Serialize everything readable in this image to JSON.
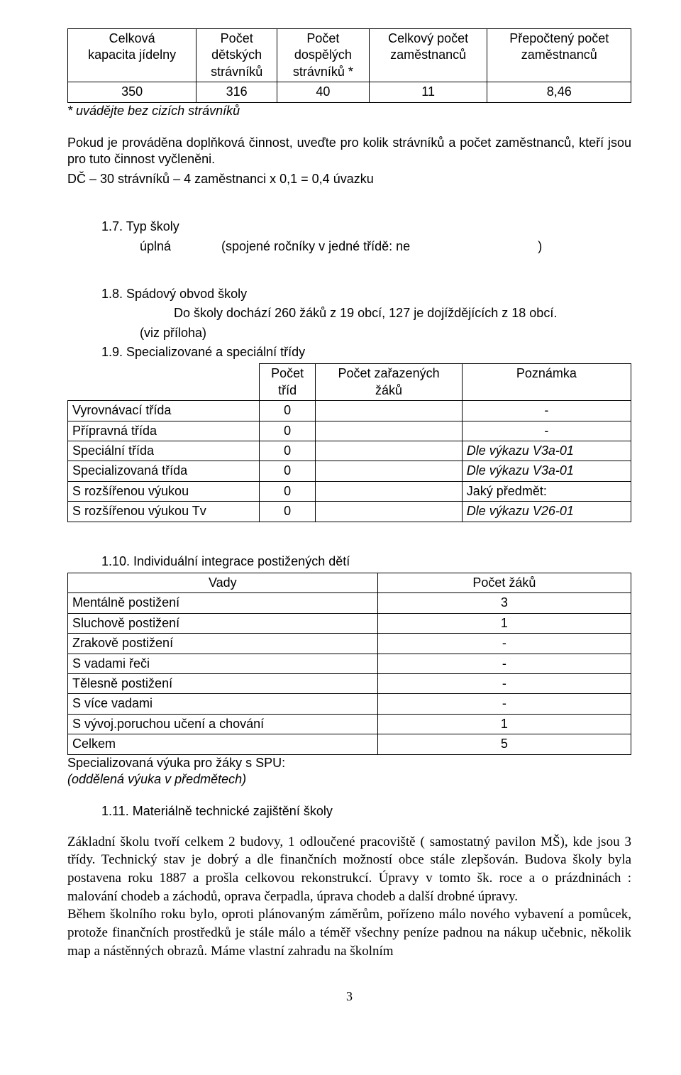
{
  "table1": {
    "headers": [
      "Celková\nkapacita jídelny",
      "Počet\ndětských\nstrávníků",
      "Počet\ndospělých\nstrávníků *",
      "Celkový počet\nzaměstnanců",
      "Přepočtený počet\nzaměstnanců"
    ],
    "row": [
      "350",
      "316",
      "40",
      "11",
      "8,46"
    ]
  },
  "note_t1": "* uvádějte bez cizích strávníků",
  "para1_a": "Pokud je prováděna doplňková činnost, uveďte pro kolik strávníků a počet zaměstnanců, kteří jsou pro tuto činnost vyčleněni.",
  "para1_b": "DČ – 30 strávníků – 4 zaměstnanci x 0,1 = 0,4 úvazku",
  "s17_num": "1.7. Typ školy",
  "s17_label": "úplná",
  "s17_text": "(spojené ročníky v jedné třídě: ne",
  "s17_paren": ")",
  "s18_num": "1.8. Spádový obvod školy",
  "s18_text": "Do školy dochází 260 žáků z 19 obcí, 127 je dojíždějících z 18 obcí.",
  "s18_viz": "(viz příloha)",
  "s19_num": "1.9. Specializované a speciální třídy",
  "table2": {
    "headers": [
      "",
      "Počet\ntříd",
      "Počet zařazených\nžáků",
      "Poznámka"
    ],
    "rows": [
      {
        "label": "Vyrovnávací třída",
        "count": "0",
        "pupils": "",
        "note": "-"
      },
      {
        "label": "Přípravná třída",
        "count": "0",
        "pupils": "",
        "note": "-"
      },
      {
        "label": "Speciální třída",
        "count": "0",
        "pupils": "",
        "note": "Dle výkazu V3a-01",
        "italic": true
      },
      {
        "label": "Specializovaná třída",
        "count": "0",
        "pupils": "",
        "note": "Dle výkazu V3a-01",
        "italic": true
      },
      {
        "label": "S rozšířenou výukou",
        "count": "0",
        "pupils": "",
        "note": "Jaký předmět:"
      },
      {
        "label": "S rozšířenou výukou Tv",
        "count": "0",
        "pupils": "",
        "note": "Dle výkazu V26-01",
        "italic": true
      }
    ]
  },
  "s110_num": "1.10. Individuální integrace postižených dětí",
  "table3": {
    "headers": [
      "Vady",
      "Počet žáků"
    ],
    "rows": [
      {
        "label": "Mentálně postižení",
        "count": "3"
      },
      {
        "label": "Sluchově postižení",
        "count": "1"
      },
      {
        "label": "Zrakově postižení",
        "count": "-"
      },
      {
        "label": "S vadami řeči",
        "count": "-"
      },
      {
        "label": "Tělesně postižení",
        "count": "-"
      },
      {
        "label": "S více vadami",
        "count": "-"
      },
      {
        "label": "S vývoj.poruchou učení a chování",
        "count": "1"
      },
      {
        "label": "Celkem",
        "count": "5"
      }
    ]
  },
  "spu": "Specializovaná výuka pro žáky s SPU:",
  "spu_note": "(oddělená výuka v předmětech)",
  "s111_num": "1.11. Materiálně technické zajištění školy",
  "body1": "Základní školu tvoří celkem 2 budovy, 1 odloučené pracoviště ( samostatný pavilon  MŠ), kde jsou 3 třídy. Technický stav je dobrý a dle finančních možností obce stále zlepšován. Budova školy byla postavena roku 1887 a prošla celkovou rekonstrukcí. Úpravy v tomto šk. roce a o prázdninách : malování  chodeb a záchodů, oprava čerpadla, úprava chodeb a další drobné úpravy.",
  "body2": "Během školního roku bylo, oproti plánovaným záměrům,  pořízeno málo nového vybavení a pomůcek, protože finančních prostředků je stále málo  a téměř  všechny peníze padnou na nákup učebnic, několik map a nástěnných obrazů. Máme vlastní zahradu na školním",
  "page": "3"
}
